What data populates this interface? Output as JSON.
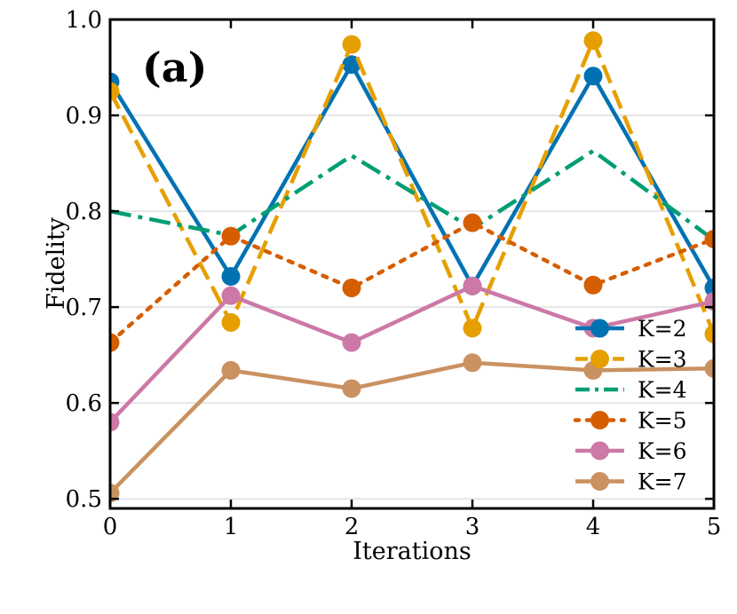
{
  "chart_data": {
    "type": "line",
    "panel_label": "(a)",
    "title": "",
    "xlabel": "Iterations",
    "ylabel": "Fidelity",
    "xlim": [
      0,
      5
    ],
    "ylim": [
      0.49,
      1.0
    ],
    "xticks": [
      0,
      1,
      2,
      3,
      4,
      5
    ],
    "xtick_labels": [
      "0",
      "1",
      "2",
      "3",
      "4",
      "5"
    ],
    "yticks": [
      0.5,
      0.6,
      0.7,
      0.8,
      0.9,
      1.0
    ],
    "ytick_labels": [
      "0.5",
      "0.6",
      "0.7",
      "0.8",
      "0.9",
      "1.0"
    ],
    "grid": "horizontal",
    "legend_position": "lower-right",
    "x": [
      0,
      1,
      2,
      3,
      4,
      5
    ],
    "series": [
      {
        "name": "K=2",
        "color": "#0072B2",
        "style": "solid",
        "marker": true,
        "values": [
          0.935,
          0.732,
          0.953,
          0.722,
          0.941,
          0.72
        ]
      },
      {
        "name": "K=3",
        "color": "#E69F00",
        "style": "dashed",
        "marker": true,
        "values": [
          0.925,
          0.684,
          0.974,
          0.678,
          0.978,
          0.672
        ]
      },
      {
        "name": "K=4",
        "color": "#009E73",
        "style": "dashdot",
        "marker": false,
        "values": [
          0.8,
          0.775,
          0.858,
          0.782,
          0.863,
          0.77
        ]
      },
      {
        "name": "K=5",
        "color": "#D55E00",
        "style": "dotted",
        "marker": true,
        "values": [
          0.663,
          0.774,
          0.72,
          0.788,
          0.723,
          0.771
        ]
      },
      {
        "name": "K=6",
        "color": "#CC79A7",
        "style": "solid",
        "marker": true,
        "values": [
          0.58,
          0.712,
          0.663,
          0.722,
          0.678,
          0.706
        ]
      },
      {
        "name": "K=7",
        "color": "#CA9161",
        "style": "solid",
        "marker": true,
        "values": [
          0.506,
          0.634,
          0.615,
          0.642,
          0.634,
          0.636
        ]
      }
    ]
  }
}
